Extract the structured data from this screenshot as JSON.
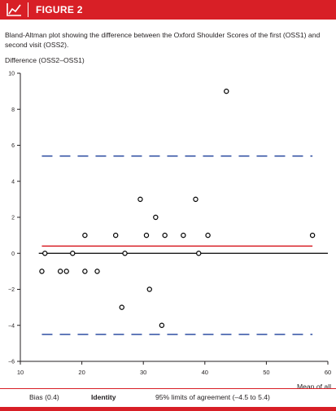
{
  "figure": {
    "label": "FIGURE 2",
    "caption": "Bland-Altman plot showing the difference between the Oxford Shoulder Scores of the first (OSS1) and second visit (OSS2)."
  },
  "colors": {
    "brand": "#d81f26",
    "bias": "#d81f26",
    "identity": "#000000",
    "limits": "#2f4fa2",
    "points": "#000000"
  },
  "chart_data": {
    "type": "scatter",
    "xlabel": "Mean of all",
    "ylabel": "Difference (OSS2–OSS1)",
    "xlim": [
      10,
      60
    ],
    "ylim": [
      -6,
      10
    ],
    "x_ticks": [
      "10",
      "20",
      "30",
      "40",
      "50",
      "60"
    ],
    "y_ticks": [
      "10",
      "8",
      "6",
      "4",
      "2",
      "0",
      "−2",
      "−4",
      "−6"
    ],
    "grid": false,
    "legend_position": "bottom",
    "points": [
      {
        "x": 13.5,
        "y": -1
      },
      {
        "x": 14.0,
        "y": 0
      },
      {
        "x": 16.5,
        "y": -1
      },
      {
        "x": 17.5,
        "y": -1
      },
      {
        "x": 18.5,
        "y": 0
      },
      {
        "x": 20.5,
        "y": 1
      },
      {
        "x": 20.5,
        "y": -1
      },
      {
        "x": 22.5,
        "y": -1
      },
      {
        "x": 25.5,
        "y": 1
      },
      {
        "x": 26.5,
        "y": -3
      },
      {
        "x": 27.0,
        "y": 0
      },
      {
        "x": 29.5,
        "y": 3
      },
      {
        "x": 30.5,
        "y": 1
      },
      {
        "x": 31.0,
        "y": -2
      },
      {
        "x": 32.0,
        "y": 2
      },
      {
        "x": 33.0,
        "y": -4
      },
      {
        "x": 33.5,
        "y": 1
      },
      {
        "x": 36.5,
        "y": 1
      },
      {
        "x": 38.5,
        "y": 3
      },
      {
        "x": 39.0,
        "y": 0
      },
      {
        "x": 40.5,
        "y": 1
      },
      {
        "x": 43.5,
        "y": 9
      },
      {
        "x": 57.5,
        "y": 1
      }
    ],
    "reference_lines": [
      {
        "name": "bias",
        "y": 0.4,
        "x_from": 13.5,
        "x_to": 57.5,
        "style": "solid",
        "color_key": "bias"
      },
      {
        "name": "identity",
        "y": 0,
        "x_from": 13,
        "x_to": 60,
        "style": "solid",
        "color_key": "identity"
      },
      {
        "name": "upper_limit",
        "y": 5.4,
        "x_from": 13.5,
        "x_to": 57.5,
        "style": "dashed",
        "color_key": "limits"
      },
      {
        "name": "lower_limit",
        "y": -4.5,
        "x_from": 13.5,
        "x_to": 57.5,
        "style": "dashed",
        "color_key": "limits"
      }
    ],
    "legend": [
      {
        "label": "Bias (0.4)",
        "style": "solid",
        "color_key": "bias"
      },
      {
        "label": "Identity",
        "style": "solid",
        "color_key": "identity"
      },
      {
        "label": "95% limits of agreement (–4.5 to 5.4)",
        "style": "dashed",
        "color_key": "limits"
      }
    ]
  }
}
